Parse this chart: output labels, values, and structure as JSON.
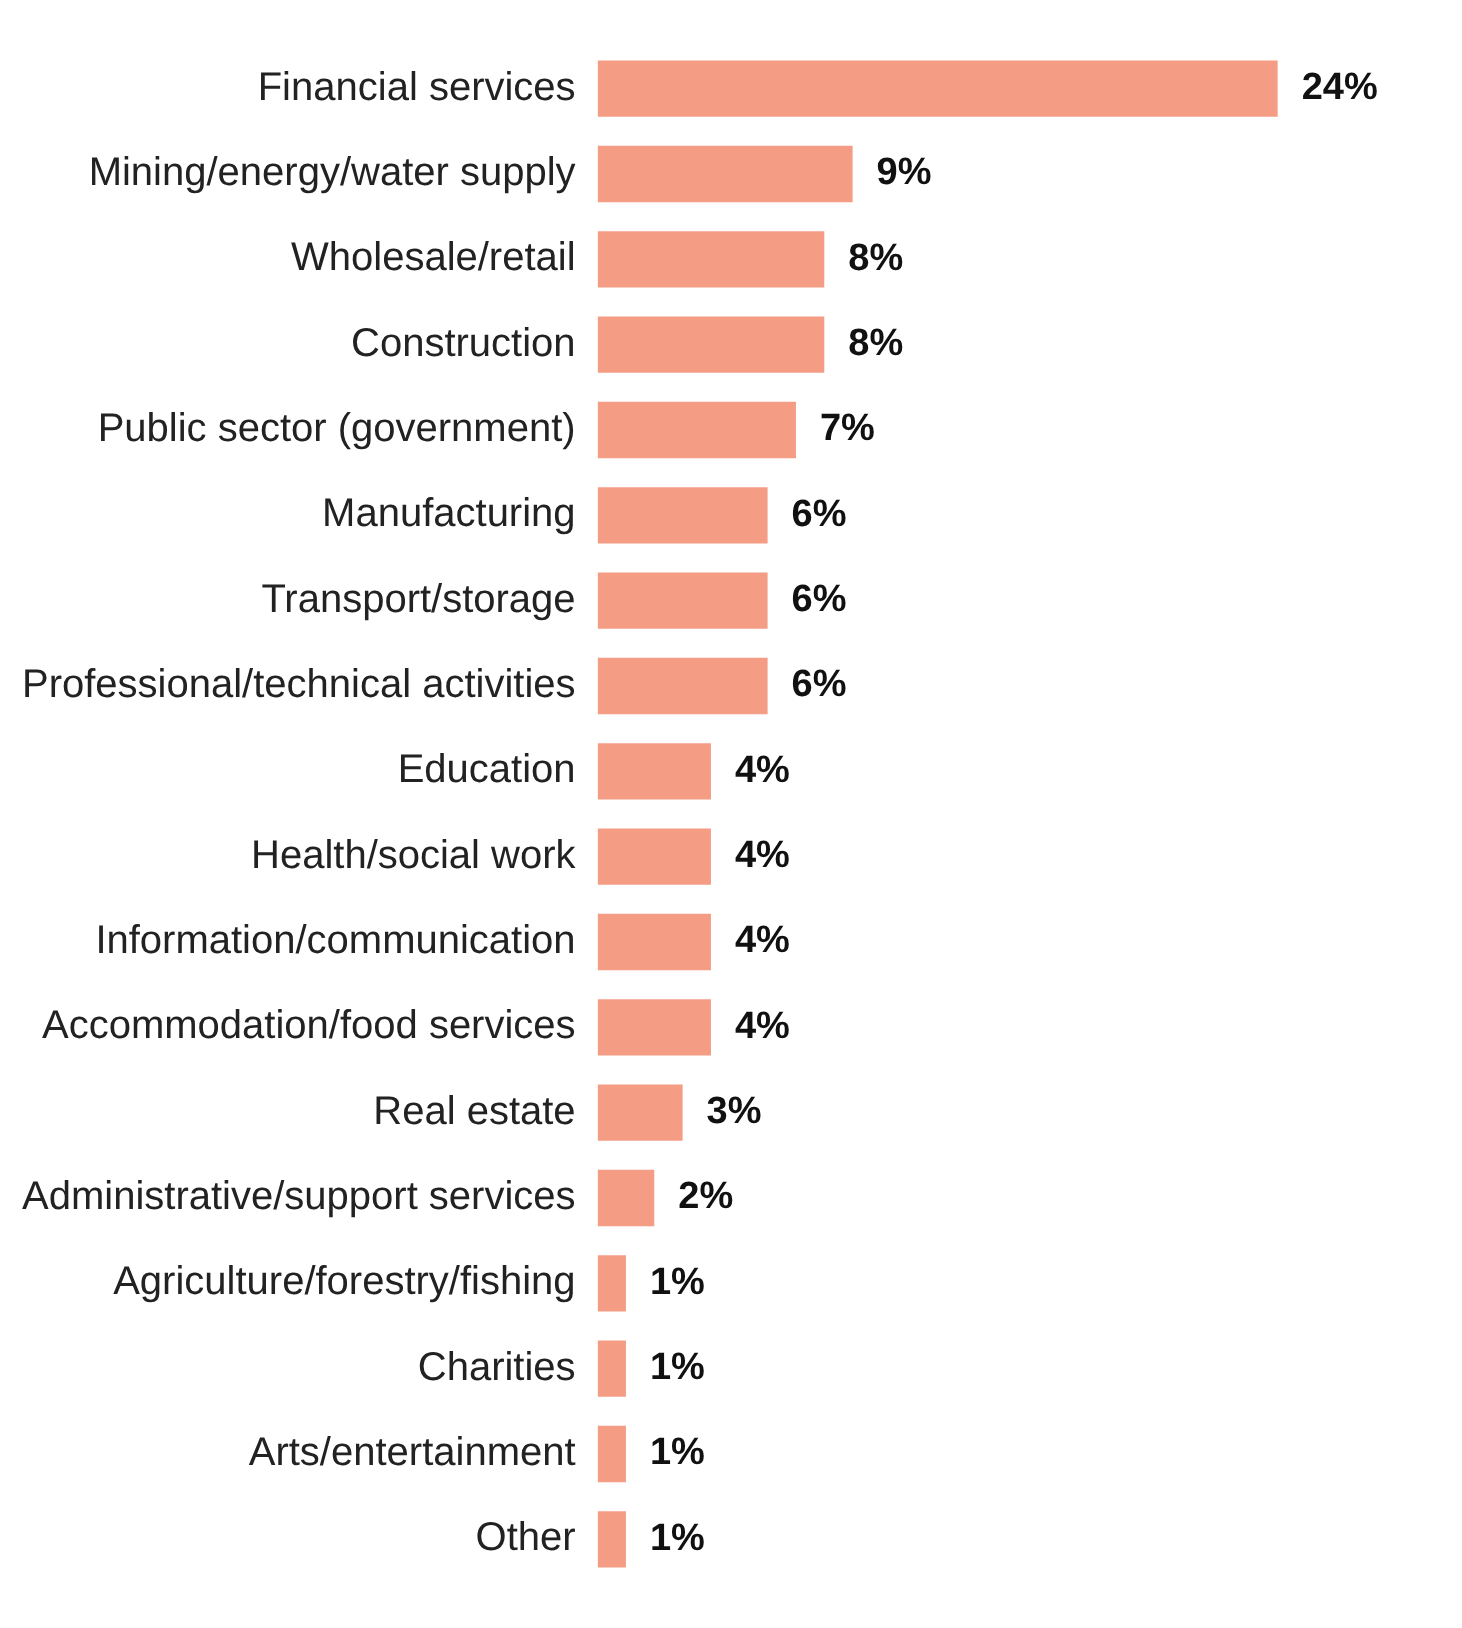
{
  "chart_data": {
    "type": "bar",
    "orientation": "horizontal",
    "tick_labels": "y",
    "categories": [
      "Financial services",
      "Mining/energy/water supply",
      "Wholesale/retail",
      "Construction",
      "Public sector (government)",
      "Manufacturing",
      "Transport/storage",
      "Professional/technical activities",
      "Education",
      "Health/social work",
      "Information/communication",
      "Accommodation/food services",
      "Real estate",
      "Administrative/support services",
      "Agriculture/forestry/fishing",
      "Charities",
      "Arts/entertainment",
      "Other"
    ],
    "values": [
      24,
      9,
      8,
      8,
      7,
      6,
      6,
      6,
      4,
      4,
      4,
      4,
      3,
      2,
      1,
      1,
      1,
      1
    ],
    "value_labels": [
      "24%",
      "9%",
      "8%",
      "8%",
      "7%",
      "6%",
      "6%",
      "6%",
      "4%",
      "4%",
      "4%",
      "4%",
      "3%",
      "2%",
      "1%",
      "1%",
      "1%",
      "1%"
    ],
    "color": "#f49d84"
  }
}
